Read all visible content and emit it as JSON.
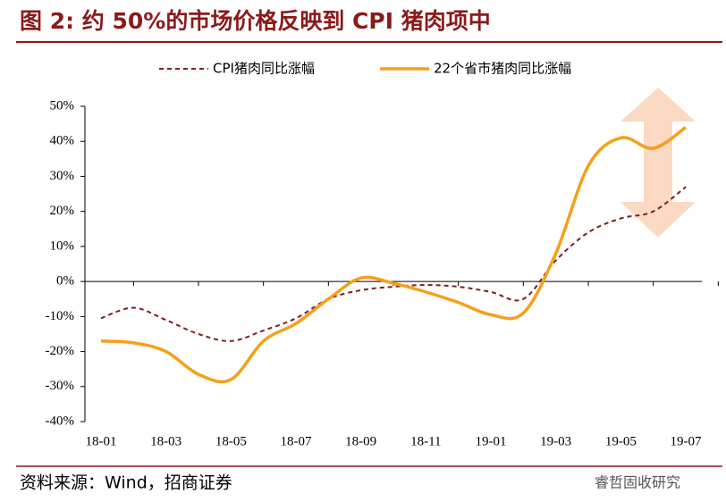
{
  "chart_data": {
    "type": "line",
    "title": "图 2: 约 50%的市场价格反映到 CPI 猪肉项中",
    "source": "资料来源：Wind，招商证券",
    "watermark": "睿哲固收研究",
    "categories": [
      "18-01",
      null,
      "18-03",
      null,
      "18-05",
      null,
      "18-07",
      null,
      "18-09",
      null,
      "18-11",
      null,
      "19-01",
      null,
      "19-03",
      null,
      "19-05",
      null,
      "19-07"
    ],
    "series": [
      {
        "name": "CPI猪肉同比涨幅",
        "color": "#7b1f1f",
        "dashed": true,
        "values": [
          -10.5,
          -7.5,
          -11,
          -15,
          -17,
          -14,
          -10.5,
          -5,
          -2.5,
          -1.5,
          -1,
          -1.5,
          -3,
          -5,
          6,
          14,
          18,
          20,
          27
        ]
      },
      {
        "name": "22个省市猪肉同比涨幅",
        "color": "#f5a01a",
        "dashed": false,
        "values": [
          -17,
          -17.5,
          -20,
          -26.5,
          -28,
          -17,
          -12,
          -5,
          1,
          -0.5,
          -3,
          -6,
          -9.5,
          -9,
          8,
          33,
          41,
          38,
          44
        ]
      }
    ],
    "ylim": [
      -40,
      50
    ],
    "yticks": [
      {
        "value": -40,
        "label": "-40%"
      },
      {
        "value": -30,
        "label": "-30%"
      },
      {
        "value": -20,
        "label": "-20%"
      },
      {
        "value": -10,
        "label": "-10%"
      },
      {
        "value": 0,
        "label": "0%"
      },
      {
        "value": 10,
        "label": "10%"
      },
      {
        "value": 20,
        "label": "20%"
      },
      {
        "value": 30,
        "label": "30%"
      },
      {
        "value": 40,
        "label": "40%"
      },
      {
        "value": 50,
        "label": "50%"
      }
    ]
  }
}
